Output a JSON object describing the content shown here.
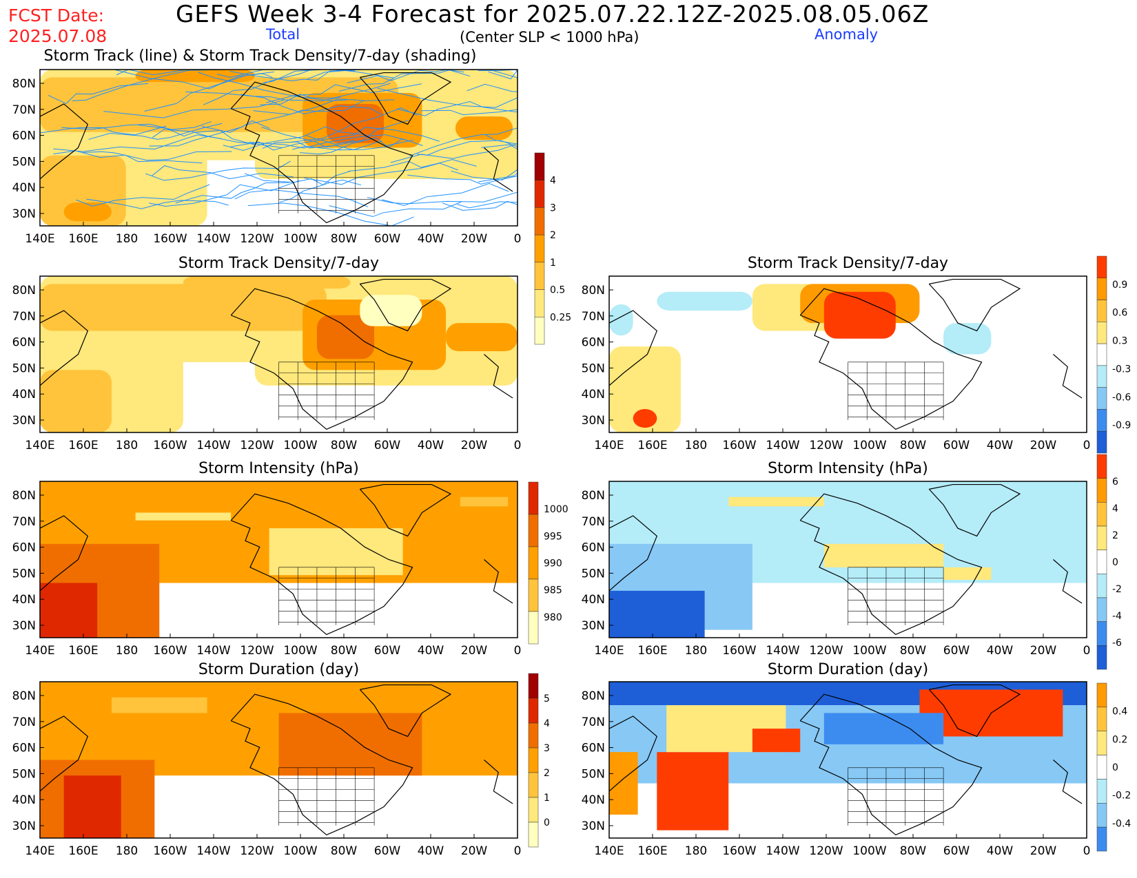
{
  "header": {
    "title": "GEFS Week 3-4 Forecast for 2025.07.22.12Z-2025.08.05.06Z",
    "fcst_label": "FCST Date:",
    "fcst_date": "2025.07.08",
    "total_label": "Total",
    "anomaly_label": "Anomaly",
    "criterion": "(Center SLP < 1000 hPa)"
  },
  "colors": {
    "map_line": "#000000",
    "track_line": "#1e90ff",
    "total_scale": [
      "#ffffc0",
      "#ffe87c",
      "#ffc43c",
      "#ffa000",
      "#f06e00",
      "#e02800",
      "#a00000"
    ],
    "anom_scale": [
      "#1e5fd8",
      "#3c8cf0",
      "#87c8f5",
      "#b4ecf8",
      "#ffffff",
      "#ffe87c",
      "#ffc43c",
      "#ff9a00",
      "#ff3c00"
    ]
  },
  "chart_data": [
    {
      "id": "track-total",
      "type": "heatmap",
      "title": "Storm Track (line) & Storm Track Density/7-day (shading)",
      "x_ticks": [
        "140E",
        "160E",
        "180",
        "160W",
        "140W",
        "120W",
        "100W",
        "80W",
        "60W",
        "40W",
        "20W",
        "0"
      ],
      "y_ticks": [
        "80N",
        "70N",
        "60N",
        "50N",
        "40N",
        "30N"
      ],
      "colorbar": [
        "0.25",
        "0.5",
        "1",
        "2",
        "3",
        "4"
      ],
      "grid": false
    },
    {
      "id": "density-total",
      "type": "heatmap",
      "title": "Storm Track Density/7-day",
      "x_ticks": [
        "140E",
        "160E",
        "180",
        "160W",
        "140W",
        "120W",
        "100W",
        "80W",
        "60W",
        "40W",
        "20W",
        "0"
      ],
      "y_ticks": [
        "80N",
        "70N",
        "60N",
        "50N",
        "40N",
        "30N"
      ],
      "colorbar": [
        "0.25",
        "0.5",
        "1",
        "2",
        "3",
        "4"
      ]
    },
    {
      "id": "density-anom",
      "type": "heatmap",
      "title": "Storm Track Density/7-day",
      "x_ticks": [
        "140E",
        "160E",
        "180",
        "160W",
        "140W",
        "120W",
        "100W",
        "80W",
        "60W",
        "40W",
        "20W",
        "0"
      ],
      "y_ticks": [
        "80N",
        "70N",
        "60N",
        "50N",
        "40N",
        "30N"
      ],
      "colorbar": [
        "-0.9",
        "-0.6",
        "-0.3",
        "0.3",
        "0.6",
        "0.9"
      ]
    },
    {
      "id": "intensity-total",
      "type": "heatmap",
      "title": "Storm Intensity (hPa)",
      "x_ticks": [
        "140E",
        "160E",
        "180",
        "160W",
        "140W",
        "120W",
        "100W",
        "80W",
        "60W",
        "40W",
        "20W",
        "0"
      ],
      "y_ticks": [
        "80N",
        "70N",
        "60N",
        "50N",
        "40N",
        "30N"
      ],
      "colorbar": [
        "980",
        "985",
        "990",
        "995",
        "1000"
      ]
    },
    {
      "id": "intensity-anom",
      "type": "heatmap",
      "title": "Storm Intensity (hPa)",
      "x_ticks": [
        "140E",
        "160E",
        "180",
        "160W",
        "140W",
        "120W",
        "100W",
        "80W",
        "60W",
        "40W",
        "20W",
        "0"
      ],
      "y_ticks": [
        "80N",
        "70N",
        "60N",
        "50N",
        "40N",
        "30N"
      ],
      "colorbar": [
        "-6",
        "-4",
        "-2",
        "0",
        "2",
        "4",
        "6"
      ]
    },
    {
      "id": "duration-total",
      "type": "heatmap",
      "title": "Storm Duration (day)",
      "x_ticks": [
        "140E",
        "160E",
        "180",
        "160W",
        "140W",
        "120W",
        "100W",
        "80W",
        "60W",
        "40W",
        "20W",
        "0"
      ],
      "y_ticks": [
        "80N",
        "70N",
        "60N",
        "50N",
        "40N",
        "30N"
      ],
      "colorbar": [
        "0",
        "1",
        "2",
        "3",
        "4",
        "5"
      ]
    },
    {
      "id": "duration-anom",
      "type": "heatmap",
      "title": "Storm Duration (day)",
      "x_ticks": [
        "140E",
        "160E",
        "180",
        "160W",
        "140W",
        "120W",
        "100W",
        "80W",
        "60W",
        "40W",
        "20W",
        "0"
      ],
      "y_ticks": [
        "80N",
        "70N",
        "60N",
        "50N",
        "40N",
        "30N"
      ],
      "colorbar": [
        "-0.4",
        "-0.2",
        "0",
        "0.2",
        "0.4"
      ]
    }
  ]
}
